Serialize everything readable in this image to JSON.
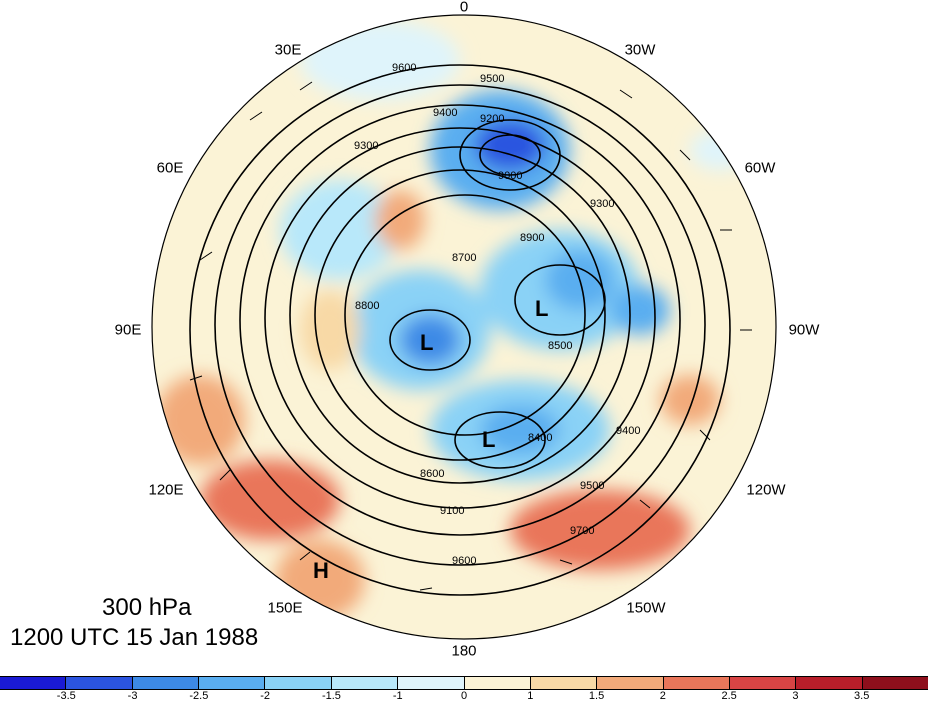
{
  "title": {
    "level": "300 hPa",
    "datetime": "1200 UTC 15 Jan 1988"
  },
  "longitude_labels": [
    {
      "text": "0",
      "lon": 0
    },
    {
      "text": "30W",
      "lon": -30
    },
    {
      "text": "60W",
      "lon": -60
    },
    {
      "text": "90W",
      "lon": -90
    },
    {
      "text": "120W",
      "lon": -120
    },
    {
      "text": "150W",
      "lon": -150
    },
    {
      "text": "180",
      "lon": 180
    },
    {
      "text": "150E",
      "lon": 150
    },
    {
      "text": "120E",
      "lon": 120
    },
    {
      "text": "90E",
      "lon": 90
    },
    {
      "text": "60E",
      "lon": 60
    },
    {
      "text": "30E",
      "lon": 30
    }
  ],
  "contour_labels": [
    "9600",
    "9500",
    "9400",
    "9300",
    "9200",
    "9100",
    "9000",
    "8900",
    "8800",
    "8700",
    "8600",
    "8500",
    "8400",
    "9700"
  ],
  "pressure_centers": [
    {
      "text": "L",
      "region": "central"
    },
    {
      "text": "L",
      "region": "north-america"
    },
    {
      "text": "L",
      "region": "pacific"
    },
    {
      "text": "H",
      "region": "east-asia"
    }
  ],
  "colorbar": {
    "ticks": [
      "-3.5",
      "-3",
      "-2.5",
      "-2",
      "-1.5",
      "-1",
      "0",
      "1",
      "1.5",
      "2",
      "2.5",
      "3",
      "3.5"
    ],
    "colors": [
      "#1a1ad4",
      "#2b54e0",
      "#3d8ae6",
      "#5aaef0",
      "#8ad2f6",
      "#b8e8fa",
      "#dff4fb",
      "#fbf3d6",
      "#f8d9a6",
      "#f2aa7a",
      "#e9765a",
      "#d84444",
      "#b81e2a",
      "#8e0f1c"
    ]
  }
}
